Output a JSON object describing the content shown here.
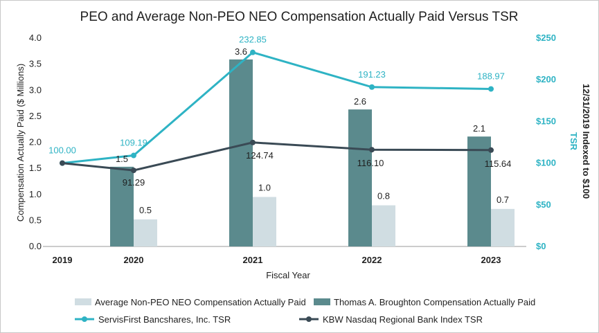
{
  "chart_data": {
    "type": "bar",
    "title": "PEO and Average Non-PEO NEO Compensation Actually Paid Versus TSR",
    "xlabel": "Fiscal Year",
    "ylabel": "Compensation Actually Paid ($ Millions)",
    "y2label": [
      "TSR",
      "12/31/2019 Indexed to $100"
    ],
    "categories": [
      "2019",
      "2020",
      "2021",
      "2022",
      "2023"
    ],
    "ylim": [
      0,
      4
    ],
    "yticks": [
      "0.0",
      "0.5",
      "1.0",
      "1.5",
      "2.0",
      "2.5",
      "3.0",
      "3.5",
      "4.0"
    ],
    "y2lim": [
      0,
      250
    ],
    "y2ticks": [
      "$0",
      "$50",
      "$100",
      "$150",
      "$200",
      "$250"
    ],
    "grid": false,
    "legend_position": "bottom",
    "series": [
      {
        "name": "Average Non-PEO NEO Compensation Actually Paid",
        "type": "bar",
        "axis": "left",
        "color": "#d0dde2",
        "values": [
          null,
          0.5,
          1.0,
          0.8,
          0.7
        ],
        "labels": [
          "",
          "0.5",
          "1.0",
          "0.8",
          "0.7"
        ],
        "plot_values": [
          null,
          0.52,
          0.95,
          0.79,
          0.72
        ]
      },
      {
        "name": "Thomas A. Broughton Compensation Actually Paid",
        "type": "bar",
        "axis": "left",
        "color": "#5b8a8d",
        "values": [
          null,
          1.5,
          3.6,
          2.6,
          2.1
        ],
        "labels": [
          "",
          "1.5",
          "3.6",
          "2.6",
          "2.1"
        ],
        "plot_values": [
          null,
          1.53,
          3.59,
          2.63,
          2.11
        ]
      },
      {
        "name": "ServisFirst Bancshares, Inc. TSR",
        "type": "line",
        "axis": "right",
        "color": "#2eb3c4",
        "values": [
          100.0,
          109.19,
          232.85,
          191.23,
          188.97
        ],
        "labels": [
          "100.00",
          "109.19",
          "232.85",
          "191.23",
          "188.97"
        ]
      },
      {
        "name": "KBW Nasdaq Regional Bank Index TSR",
        "type": "line",
        "axis": "right",
        "color": "#3a4a55",
        "values": [
          100.0,
          91.29,
          124.74,
          116.1,
          115.64
        ],
        "labels": [
          "",
          "91.29",
          "124.74",
          "116.10",
          "115.64"
        ]
      }
    ]
  }
}
